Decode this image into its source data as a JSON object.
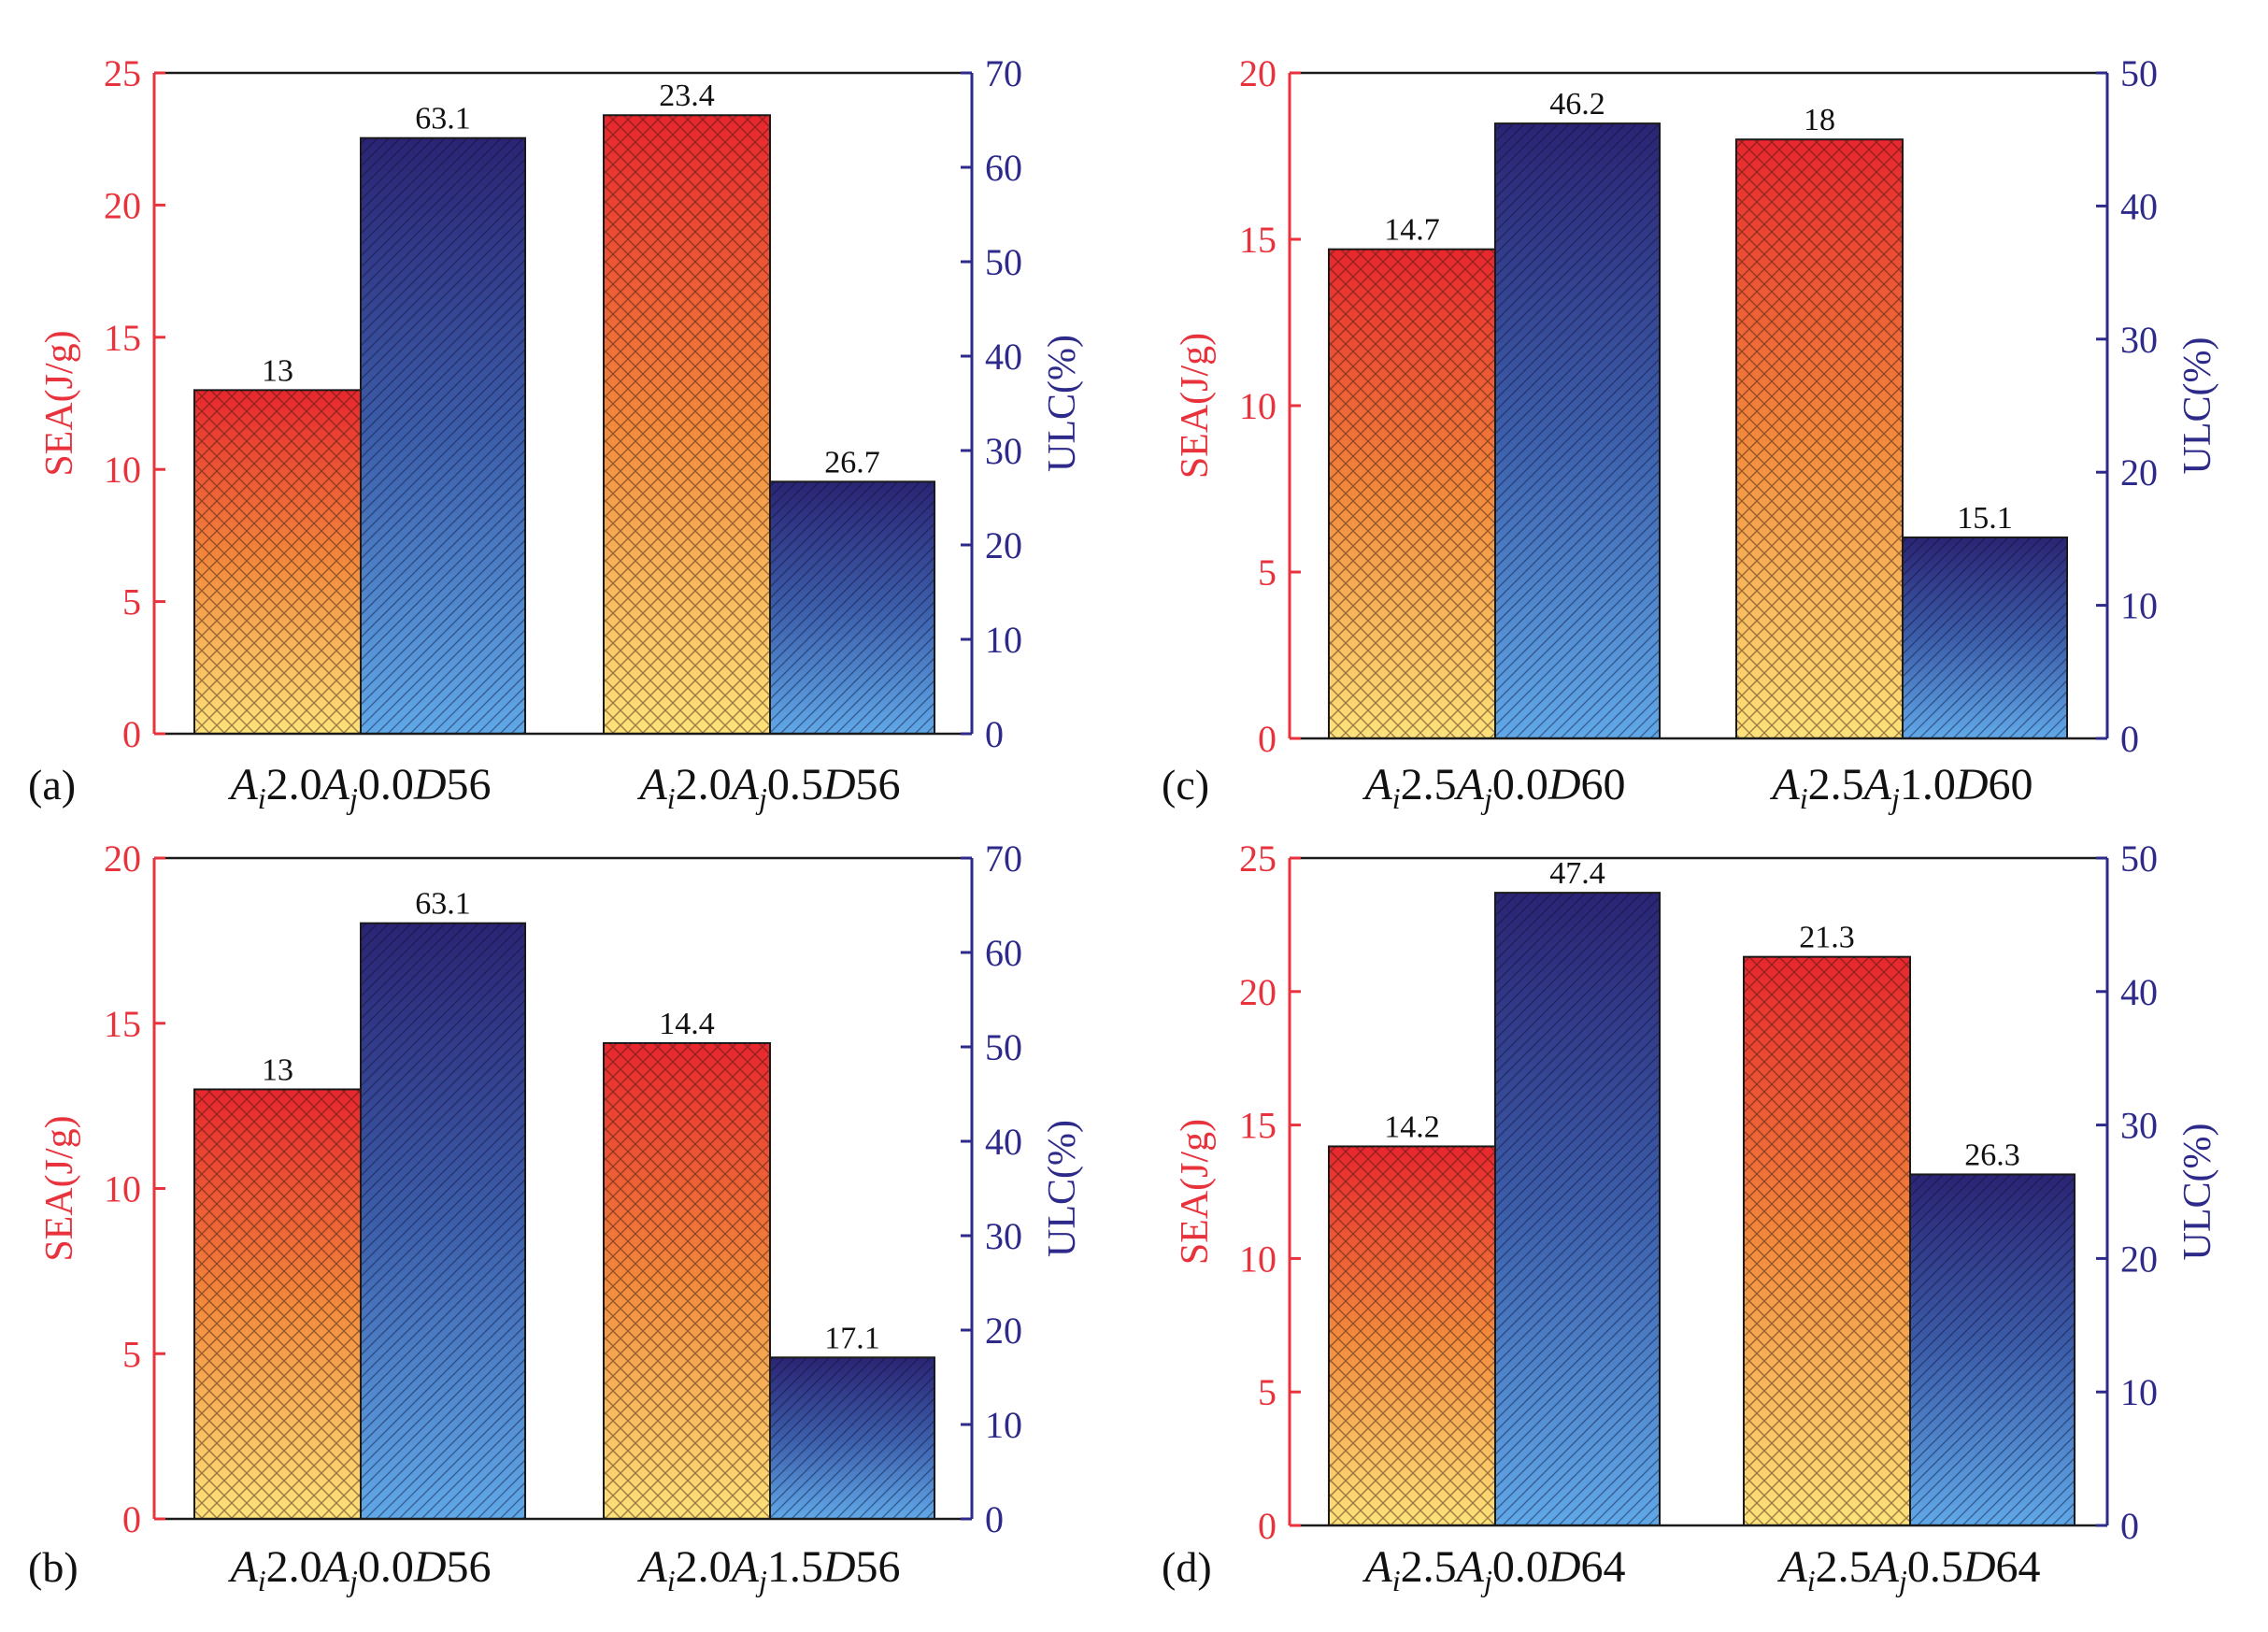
{
  "figure": {
    "colors": {
      "sea_axis": "#e8323c",
      "ulc_axis": "#2e2a8a",
      "sea_gradient": [
        "#e8262e",
        "#f28a3c",
        "#fde27a"
      ],
      "ulc_gradient": [
        "#2b2474",
        "#3c5eaa",
        "#60a8e8"
      ]
    }
  },
  "chart_data": [
    {
      "type": "bar",
      "panel": "(a)",
      "ylabel": "SEA(J/g)",
      "y2label": "ULC(%)",
      "ylim": [
        0,
        25
      ],
      "yticks": [
        "0",
        "5",
        "10",
        "15",
        "20",
        "25"
      ],
      "y2lim": [
        0,
        70
      ],
      "y2ticks": [
        "0",
        "10",
        "20",
        "30",
        "40",
        "50",
        "60",
        "70"
      ],
      "categories": [
        {
          "label": "A_i2.0A_j0.0D56",
          "parts": [
            "A",
            "i",
            "2.0",
            "A",
            "j",
            "0.0",
            "D",
            "56"
          ]
        },
        {
          "label": "A_i2.0A_j0.5D56",
          "parts": [
            "A",
            "i",
            "2.0",
            "A",
            "j",
            "0.5",
            "D",
            "56"
          ]
        }
      ],
      "series": [
        {
          "name": "SEA",
          "axis": "left",
          "values": [
            13,
            23.4
          ],
          "labels": [
            "13",
            "23.4"
          ]
        },
        {
          "name": "ULC",
          "axis": "right",
          "values": [
            63.1,
            26.7
          ],
          "labels": [
            "63.1",
            "26.7"
          ]
        }
      ]
    },
    {
      "type": "bar",
      "panel": "(b)",
      "ylabel": "SEA(J/g)",
      "y2label": "ULC(%)",
      "ylim": [
        0,
        20
      ],
      "yticks": [
        "0",
        "5",
        "10",
        "15",
        "20"
      ],
      "y2lim": [
        0,
        70
      ],
      "y2ticks": [
        "0",
        "10",
        "20",
        "30",
        "40",
        "50",
        "60",
        "70"
      ],
      "categories": [
        {
          "label": "A_i2.0A_j0.0D56",
          "parts": [
            "A",
            "i",
            "2.0",
            "A",
            "j",
            "0.0",
            "D",
            "56"
          ]
        },
        {
          "label": "A_i2.0A_j1.5D56",
          "parts": [
            "A",
            "i",
            "2.0",
            "A",
            "j",
            "1.5",
            "D",
            "56"
          ]
        }
      ],
      "series": [
        {
          "name": "SEA",
          "axis": "left",
          "values": [
            13,
            14.4
          ],
          "labels": [
            "13",
            "14.4"
          ]
        },
        {
          "name": "ULC",
          "axis": "right",
          "values": [
            63.1,
            17.1
          ],
          "labels": [
            "63.1",
            "17.1"
          ]
        }
      ]
    },
    {
      "type": "bar",
      "panel": "(c)",
      "ylabel": "SEA(J/g)",
      "y2label": "ULC(%)",
      "ylim": [
        0,
        20
      ],
      "yticks": [
        "0",
        "5",
        "10",
        "15",
        "20"
      ],
      "y2lim": [
        0,
        50
      ],
      "y2ticks": [
        "0",
        "10",
        "20",
        "30",
        "40",
        "50"
      ],
      "categories": [
        {
          "label": "A_i2.5A_j0.0D60",
          "parts": [
            "A",
            "i",
            "2.5",
            "A",
            "j",
            "0.0",
            "D",
            "60"
          ]
        },
        {
          "label": "A_i2.5A_j1.0D60",
          "parts": [
            "A",
            "i",
            "2.5",
            "A",
            "j",
            "1.0",
            "D",
            "60"
          ]
        }
      ],
      "series": [
        {
          "name": "SEA",
          "axis": "left",
          "values": [
            14.7,
            18
          ],
          "labels": [
            "14.7",
            "18"
          ]
        },
        {
          "name": "ULC",
          "axis": "right",
          "values": [
            46.2,
            15.1
          ],
          "labels": [
            "46.2",
            "15.1"
          ]
        }
      ]
    },
    {
      "type": "bar",
      "panel": "(d)",
      "ylabel": "SEA(J/g)",
      "y2label": "ULC(%)",
      "ylim": [
        0,
        25
      ],
      "yticks": [
        "0",
        "5",
        "10",
        "15",
        "20",
        "25"
      ],
      "y2lim": [
        0,
        50
      ],
      "y2ticks": [
        "0",
        "10",
        "20",
        "30",
        "40",
        "50"
      ],
      "categories": [
        {
          "label": "A_i2.5A_j0.0D64",
          "parts": [
            "A",
            "i",
            "2.5",
            "A",
            "j",
            "0.0",
            "D",
            "64"
          ]
        },
        {
          "label": "A_i2.5A_j0.5D64",
          "parts": [
            "A",
            "i",
            "2.5",
            "A",
            "j",
            "0.5",
            "D",
            "64"
          ]
        }
      ],
      "series": [
        {
          "name": "SEA",
          "axis": "left",
          "values": [
            14.2,
            21.3
          ],
          "labels": [
            "14.2",
            "21.3"
          ]
        },
        {
          "name": "ULC",
          "axis": "right",
          "values": [
            47.4,
            26.3
          ],
          "labels": [
            "47.4",
            "26.3"
          ]
        }
      ]
    }
  ]
}
